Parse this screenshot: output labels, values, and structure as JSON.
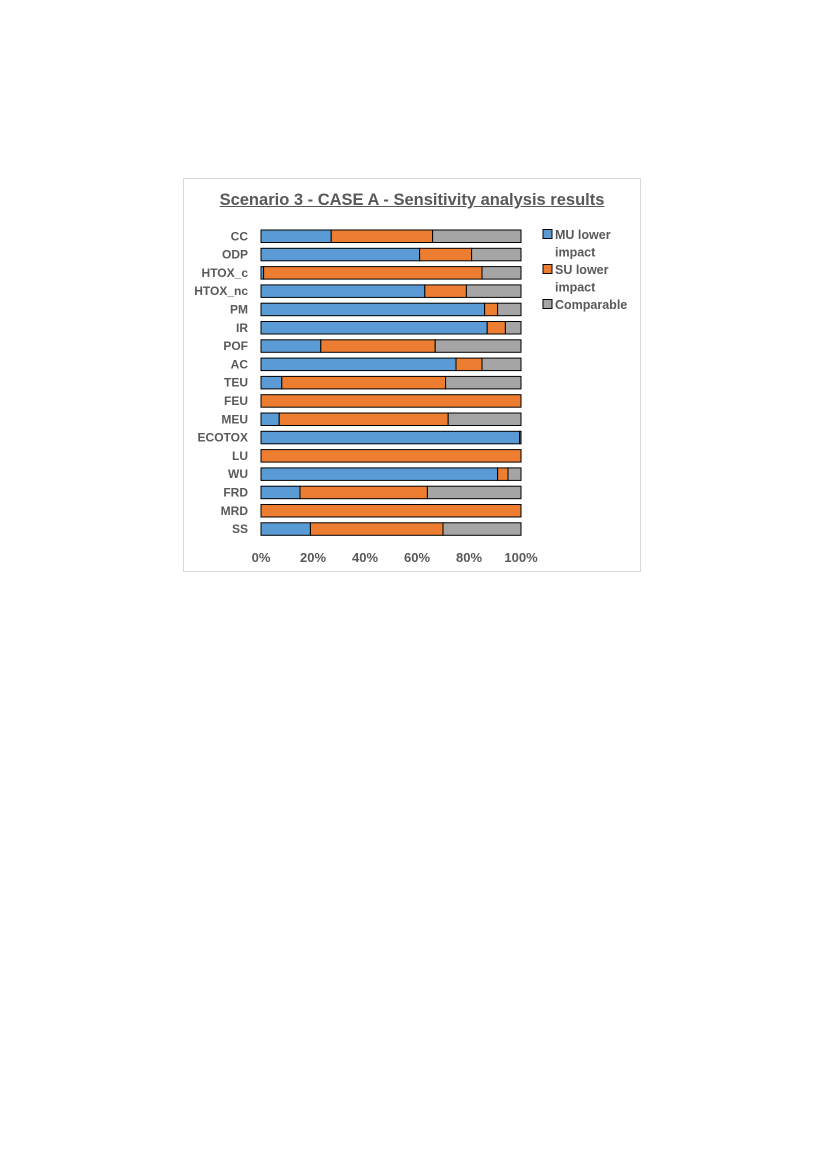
{
  "chart_data": {
    "type": "bar",
    "orientation": "horizontal",
    "stacked": "percent",
    "title": "Scenario 3 - CASE A - Sensitivity analysis results",
    "xlabel": "",
    "ylabel": "",
    "xlim": [
      0,
      100
    ],
    "x_ticks": [
      "0%",
      "20%",
      "40%",
      "60%",
      "80%",
      "100%"
    ],
    "grid": false,
    "legend_position": "right",
    "categories": [
      "CC",
      "ODP",
      "HTOX_c",
      "HTOX_nc",
      "PM",
      "IR",
      "POF",
      "AC",
      "TEU",
      "FEU",
      "MEU",
      "ECOTOX",
      "LU",
      "WU",
      "FRD",
      "MRD",
      "SS"
    ],
    "series": [
      {
        "name": "MU lower impact",
        "legend_lines": [
          "MU lower",
          "impact"
        ],
        "color": "#5B9BD5",
        "values": [
          27,
          61,
          1,
          63,
          86,
          87,
          23,
          75,
          8,
          0,
          7,
          99.5,
          0,
          91,
          15,
          0,
          19
        ]
      },
      {
        "name": "SU lower impact",
        "legend_lines": [
          "SU lower",
          "impact"
        ],
        "color": "#ED7D31",
        "values": [
          39,
          20,
          84,
          16,
          5,
          7,
          44,
          10,
          63,
          100,
          65,
          0,
          100,
          4,
          49,
          100,
          51
        ]
      },
      {
        "name": "Comparable",
        "legend_lines": [
          "Comparable"
        ],
        "color": "#A5A5A5",
        "values": [
          34,
          19,
          15,
          21,
          9,
          6,
          33,
          15,
          29,
          0,
          28,
          0.5,
          0,
          5,
          36,
          0,
          30
        ]
      }
    ]
  }
}
